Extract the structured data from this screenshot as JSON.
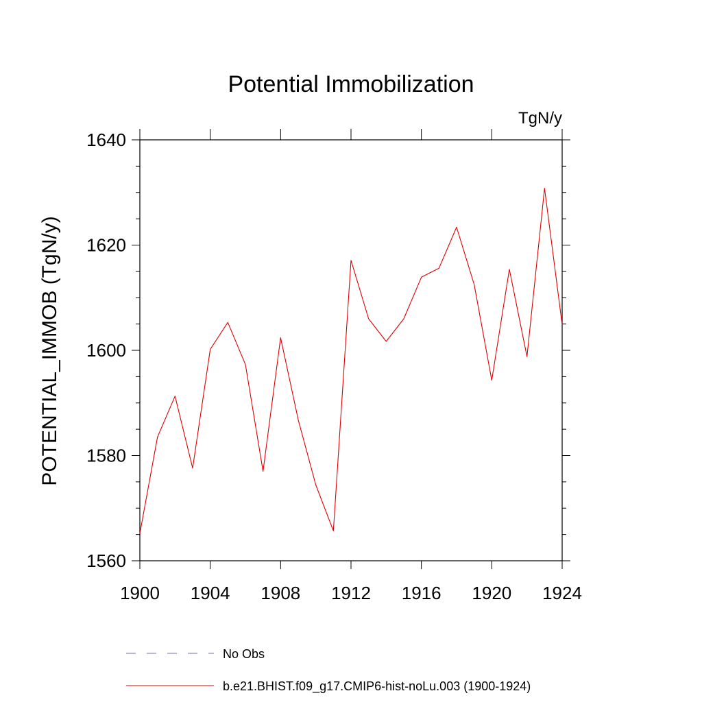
{
  "chart_data": {
    "type": "line",
    "title": "Potential Immobilization",
    "units_label": "TgN/y",
    "xlabel": "",
    "ylabel": "POTENTIAL_IMMOB  (TgN/y)",
    "xlim": [
      1900,
      1924
    ],
    "ylim": [
      1560,
      1640
    ],
    "x_ticks": [
      1900,
      1904,
      1908,
      1912,
      1916,
      1920,
      1924
    ],
    "y_ticks": [
      1560,
      1580,
      1600,
      1620,
      1640
    ],
    "grid": false,
    "legend_position": "bottom",
    "legend": [
      {
        "label": "No Obs",
        "color": "#7b68b8",
        "style": "dashed"
      },
      {
        "label": "b.e21.BHIST.f09_g17.CMIP6-hist-noLu.003 (1900-1924)",
        "color": "#e00000",
        "style": "solid"
      }
    ],
    "series": [
      {
        "name": "b.e21.BHIST.f09_g17.CMIP6-hist-noLu.003 (1900-1924)",
        "color": "#e00000",
        "x": [
          1900,
          1901,
          1902,
          1903,
          1904,
          1905,
          1906,
          1907,
          1908,
          1909,
          1910,
          1911,
          1912,
          1913,
          1914,
          1915,
          1916,
          1917,
          1918,
          1919,
          1920,
          1921,
          1922,
          1923,
          1924
        ],
        "values": [
          1565.2,
          1583.5,
          1591.3,
          1577.6,
          1600.2,
          1605.3,
          1597.3,
          1577.0,
          1602.4,
          1586.8,
          1574.4,
          1565.7,
          1617.1,
          1606.0,
          1601.7,
          1606.0,
          1613.9,
          1615.6,
          1623.4,
          1612.5,
          1594.3,
          1615.4,
          1598.8,
          1630.8,
          1604.9
        ]
      }
    ]
  }
}
